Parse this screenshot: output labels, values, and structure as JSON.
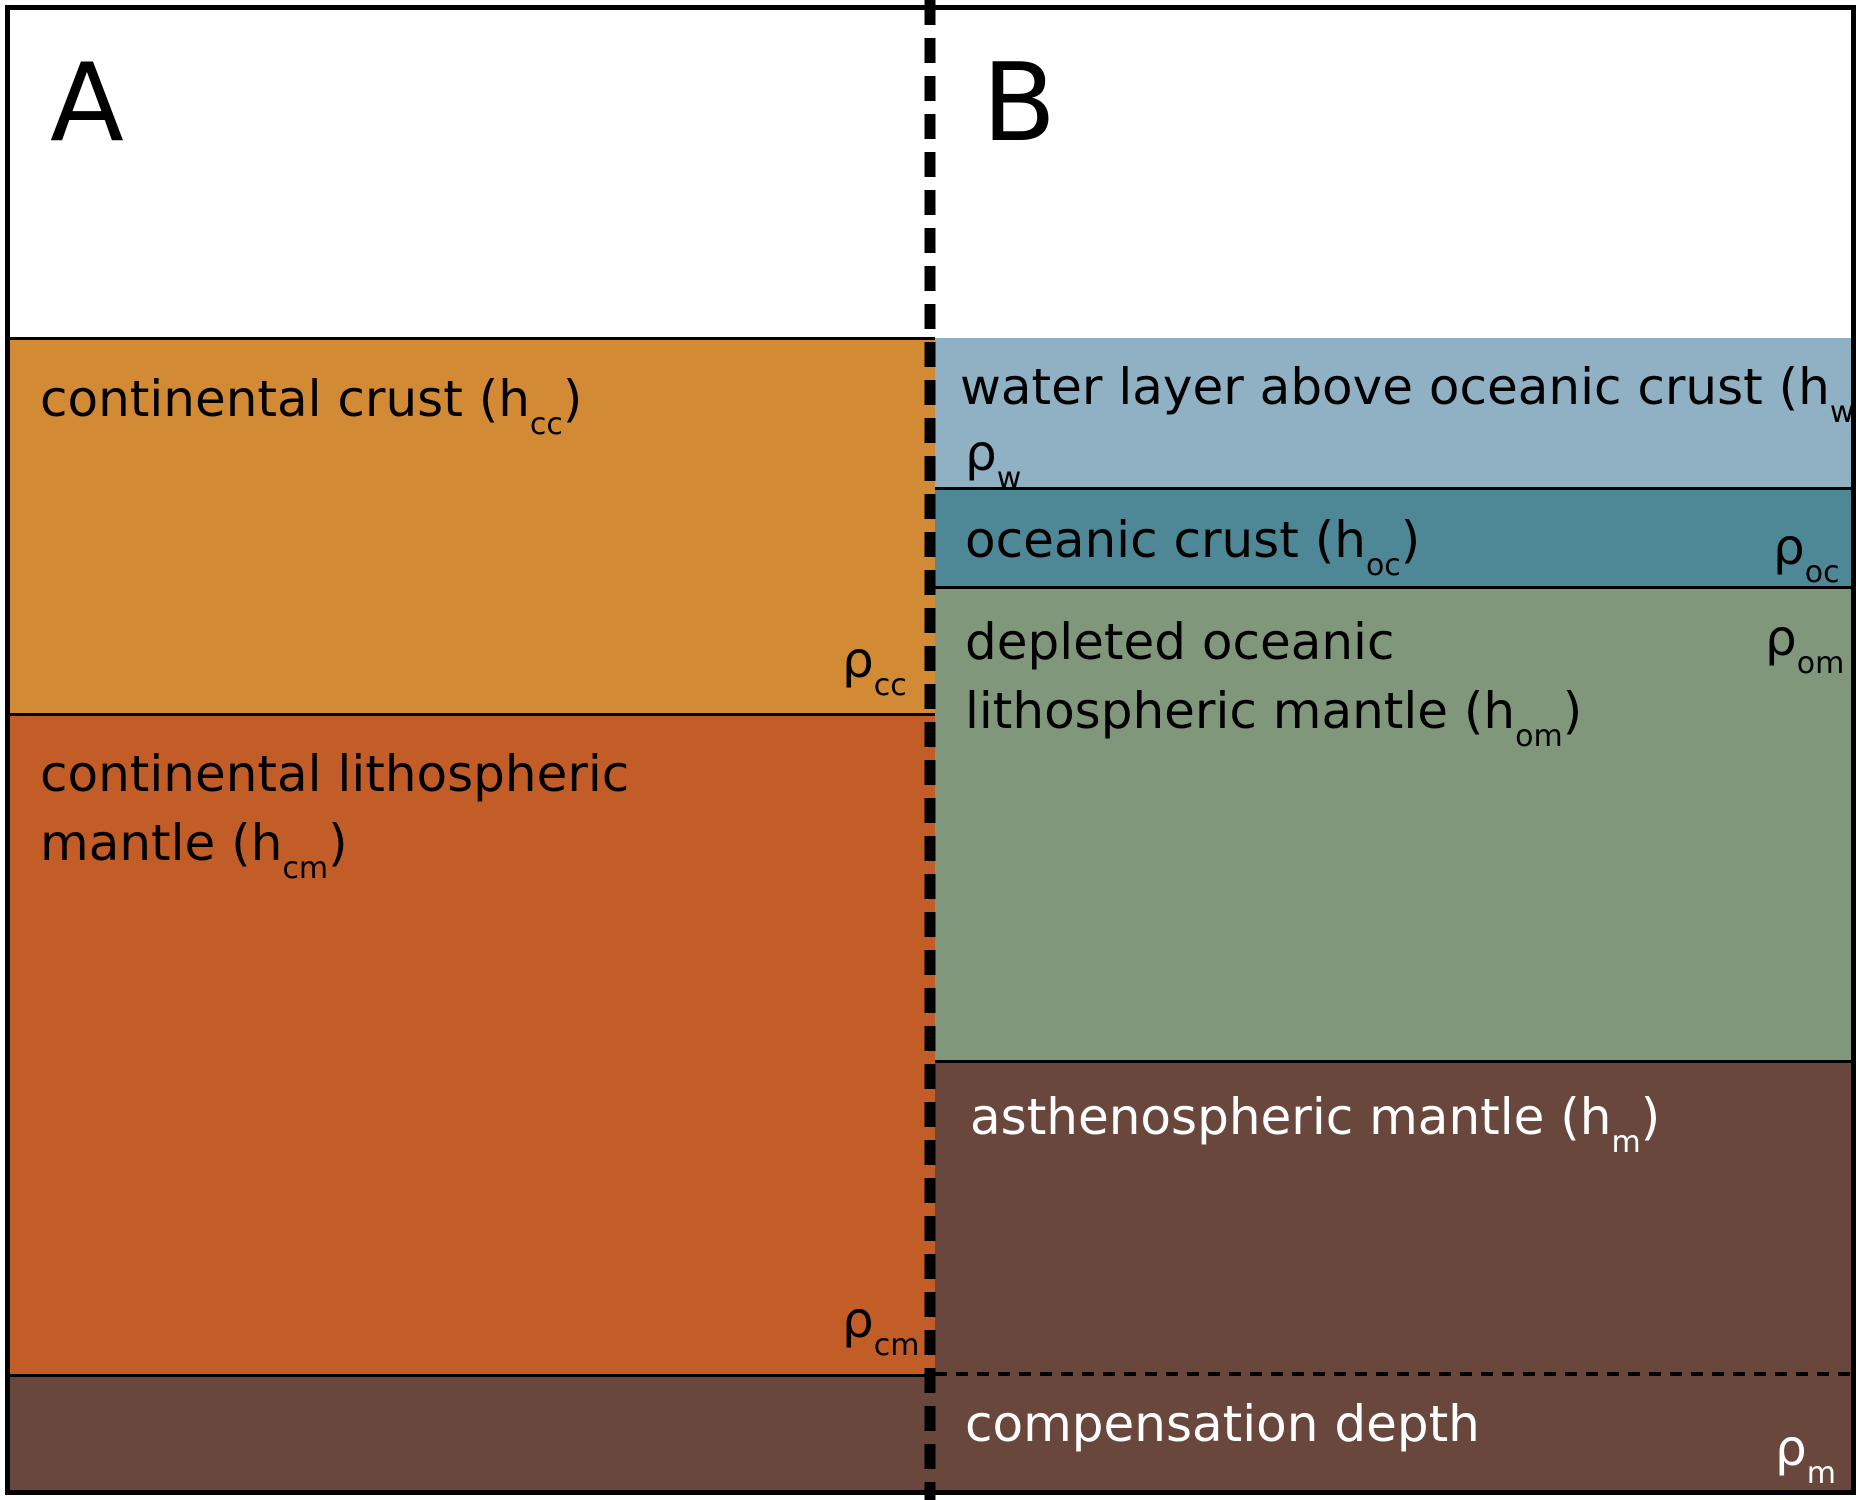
{
  "panels": {
    "a_label": "A",
    "b_label": "B"
  },
  "colors": {
    "continental_crust": "#D38A34",
    "continental_mantle": "#C35D27",
    "water": "#8FB1C3",
    "oceanic_crust": "#4E8795",
    "oceanic_mantle": "#80977B",
    "asthenosphere": "#69473D"
  },
  "column_a": {
    "continental_crust": {
      "name": "continental crust (h",
      "sub": "cc",
      "close": ")",
      "rho": "ρ",
      "rho_sub": "cc"
    },
    "continental_mantle": {
      "line1": "continental lithospheric",
      "line2": "mantle (h",
      "sub": "cm",
      "close": ")",
      "rho": "ρ",
      "rho_sub": "cm"
    }
  },
  "column_b": {
    "water": {
      "name": "water layer above oceanic crust (h",
      "sub": "w",
      "close": ")",
      "rho": "ρ",
      "rho_sub": "w"
    },
    "oceanic_crust": {
      "name": "oceanic crust (h",
      "sub": "oc",
      "close": ")",
      "rho": "ρ",
      "rho_sub": "oc"
    },
    "oceanic_mantle": {
      "line1": "depleted oceanic",
      "line2": "lithospheric mantle (h",
      "sub": "om",
      "close": ")",
      "rho": "ρ",
      "rho_sub": "om"
    },
    "asthenosphere": {
      "name": "asthenospheric mantle (h",
      "sub": "m",
      "close": ")"
    },
    "compensation": {
      "name": "compensation depth",
      "rho": "ρ",
      "rho_sub": "m"
    }
  }
}
